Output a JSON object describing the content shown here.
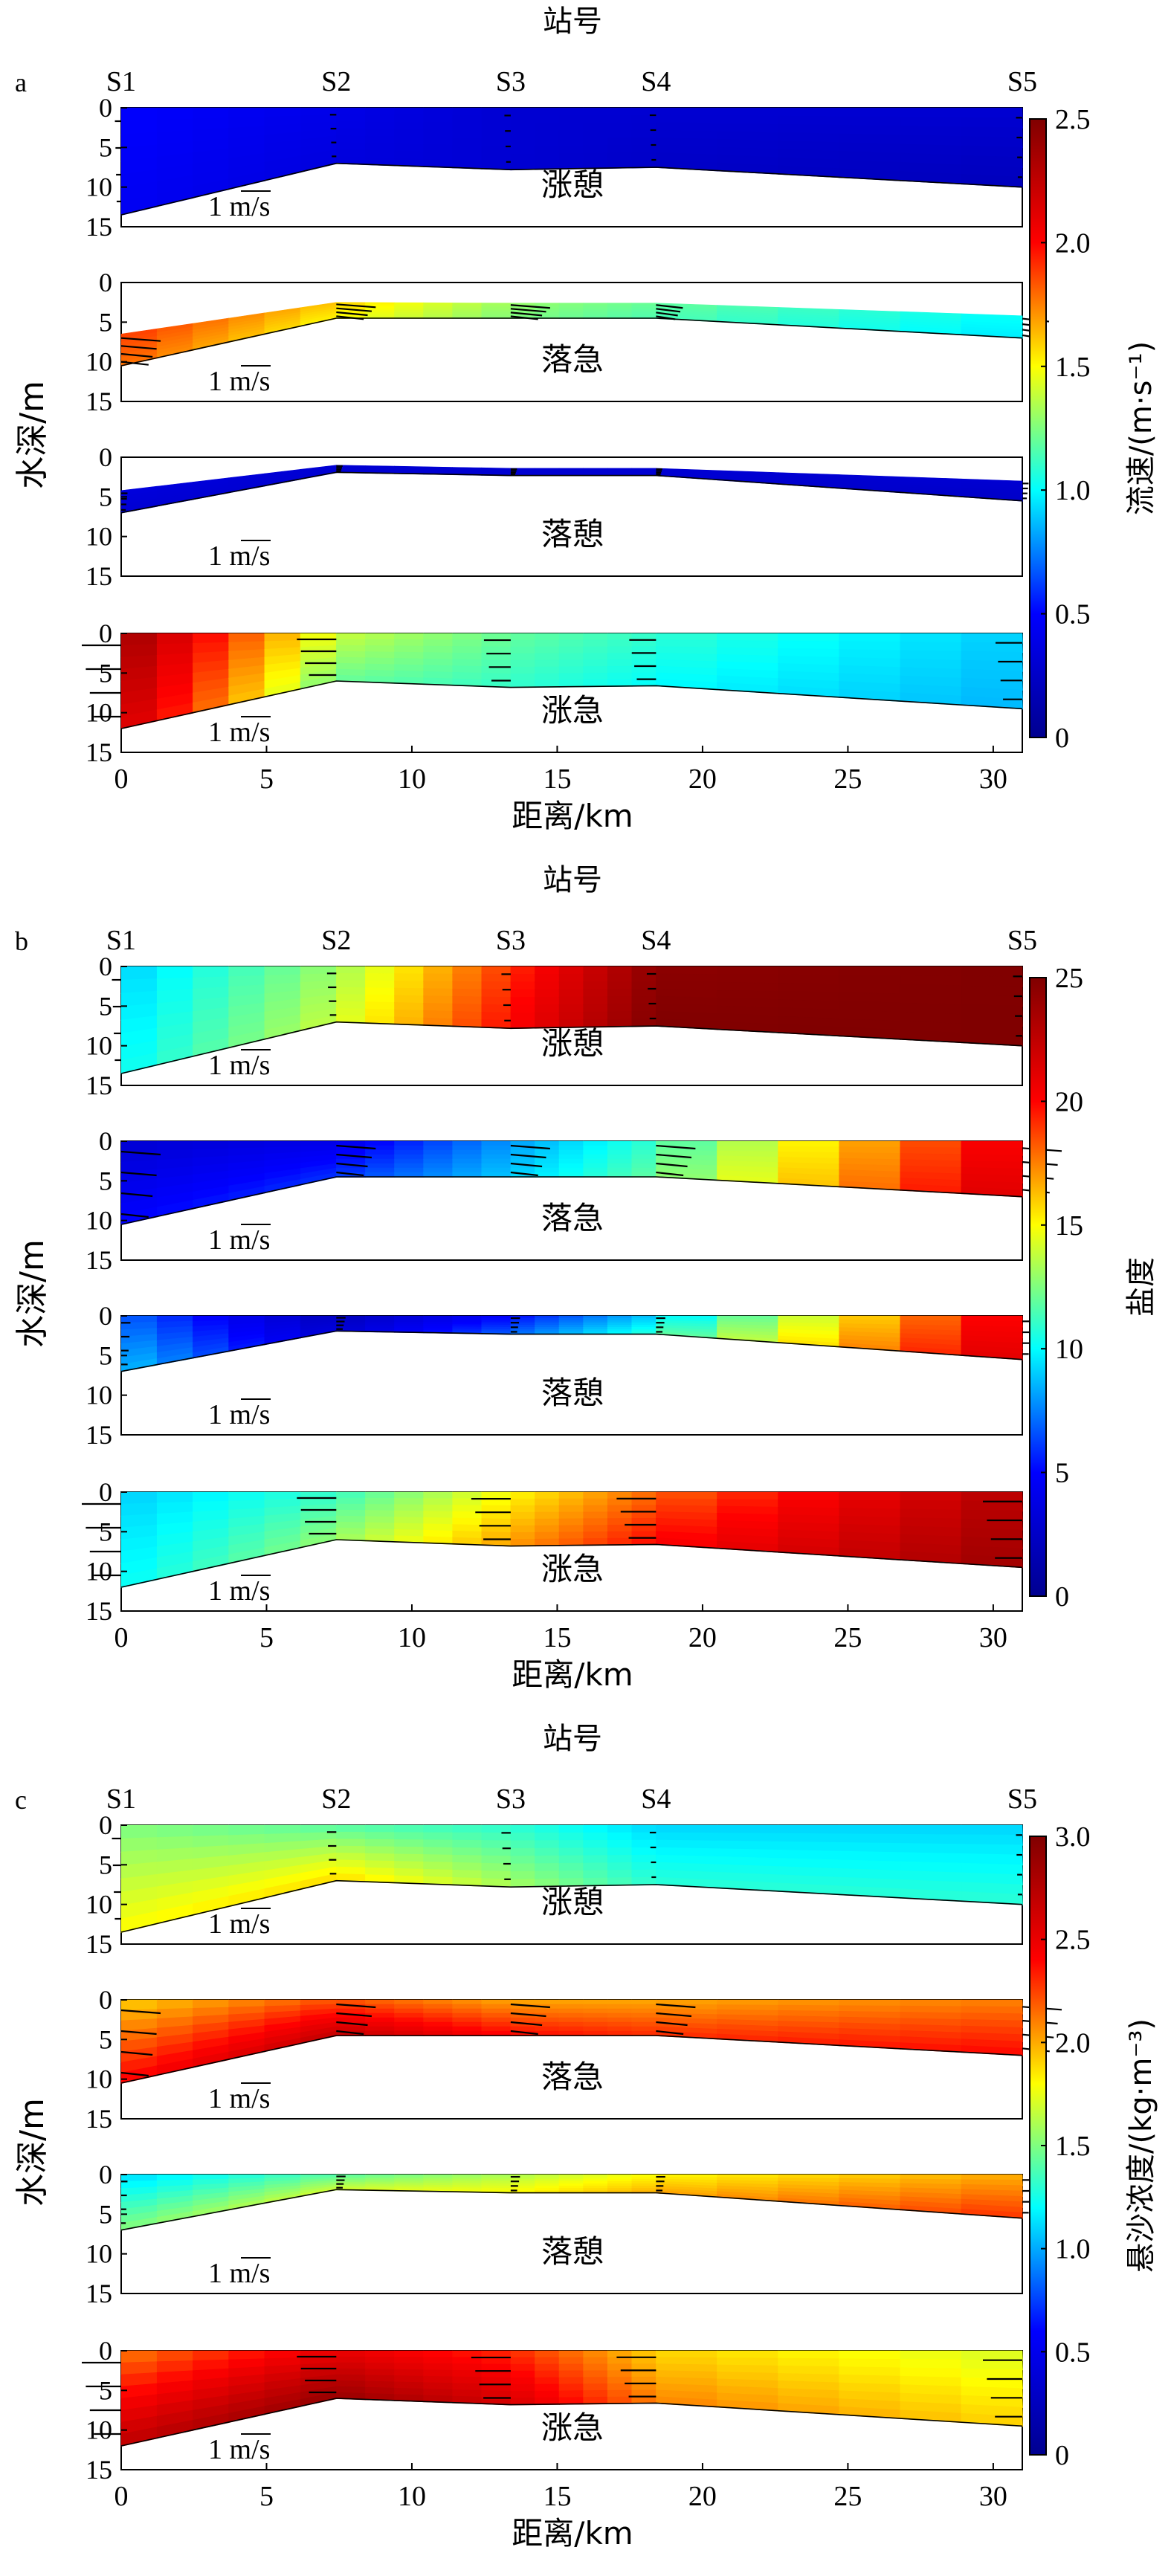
{
  "chart_data": [
    {
      "panel_letter": "a",
      "type": "heatmap",
      "title": "站号",
      "xlabel": "距离/km",
      "ylabel": "水深/m",
      "colorbar_label": "流速/(m·s⁻¹)",
      "colorbar_ticks": [
        "0",
        "0.5",
        "1.0",
        "1.5",
        "2.0",
        "2.5"
      ],
      "clim": [
        0,
        2.5
      ],
      "colormap": [
        "#00008f",
        "#0000ff",
        "#00ffff",
        "#ffff00",
        "#ff0000",
        "#800000"
      ],
      "xlim": [
        0,
        31
      ],
      "x_ticks": [
        "0",
        "5",
        "10",
        "15",
        "20",
        "25",
        "30"
      ],
      "ylim": [
        15,
        0
      ],
      "y_ticks": [
        "0",
        "5",
        "10",
        "15"
      ],
      "stations": [
        {
          "name": "S1",
          "x_km": 0
        },
        {
          "name": "S2",
          "x_km": 7.4
        },
        {
          "name": "S3",
          "x_km": 13.4
        },
        {
          "name": "S4",
          "x_km": 18.4
        },
        {
          "name": "S5",
          "x_km": 31
        }
      ],
      "scale_label": "1 m/s",
      "subplots": [
        {
          "phase": "涨憩",
          "bottom_depth": [
            13.5,
            7,
            7.8,
            7.5,
            10
          ],
          "surface_depth": [
            0,
            0,
            0,
            0,
            0
          ],
          "station_values": [
            [
              0.5,
              0.45
            ],
            [
              0.4,
              0.35
            ],
            [
              0.3,
              0.3
            ],
            [
              0.3,
              0.25
            ],
            [
              0.3,
              0.2
            ]
          ]
        },
        {
          "phase": "落急",
          "bottom_depth": [
            10.5,
            4.5,
            4.5,
            4.5,
            7
          ],
          "surface_depth": [
            6.5,
            2.5,
            2.6,
            2.6,
            4.2
          ],
          "station_values": [
            [
              1.9,
              1.8
            ],
            [
              1.6,
              1.5
            ],
            [
              1.3,
              1.25
            ],
            [
              1.2,
              1.15
            ],
            [
              1.0,
              0.95
            ]
          ]
        },
        {
          "phase": "落憩",
          "bottom_depth": [
            7,
            1.9,
            2.3,
            2.3,
            5.5
          ],
          "surface_depth": [
            4.2,
            1,
            1.4,
            1.4,
            3
          ],
          "station_values": [
            [
              0.35,
              0.3
            ],
            [
              0.3,
              0.3
            ],
            [
              0.3,
              0.3
            ],
            [
              0.3,
              0.3
            ],
            [
              0.3,
              0.25
            ]
          ]
        },
        {
          "phase": "涨急",
          "bottom_depth": [
            12,
            6,
            6.8,
            6.6,
            9.5
          ],
          "surface_depth": [
            0,
            0,
            0,
            0,
            0
          ],
          "station_values": [
            [
              2.4,
              2.2
            ],
            [
              1.4,
              1.2
            ],
            [
              1.2,
              1.1
            ],
            [
              1.1,
              1.0
            ],
            [
              0.9,
              0.85
            ]
          ]
        }
      ]
    },
    {
      "panel_letter": "b",
      "type": "heatmap",
      "title": "站号",
      "xlabel": "距离/km",
      "ylabel": "水深/m",
      "colorbar_label": "盐度",
      "colorbar_ticks": [
        "0",
        "5",
        "10",
        "15",
        "20",
        "25"
      ],
      "clim": [
        0,
        25
      ],
      "colormap": [
        "#00008f",
        "#0000ff",
        "#00ffff",
        "#ffff00",
        "#ff0000",
        "#800000"
      ],
      "xlim": [
        0,
        31
      ],
      "x_ticks": [
        "0",
        "5",
        "10",
        "15",
        "20",
        "25",
        "30"
      ],
      "ylim": [
        15,
        0
      ],
      "y_ticks": [
        "0",
        "5",
        "10",
        "15"
      ],
      "stations": [
        {
          "name": "S1",
          "x_km": 0
        },
        {
          "name": "S2",
          "x_km": 7.4
        },
        {
          "name": "S3",
          "x_km": 13.4
        },
        {
          "name": "S4",
          "x_km": 18.4
        },
        {
          "name": "S5",
          "x_km": 31
        }
      ],
      "scale_label": "1 m/s",
      "subplots": [
        {
          "phase": "涨憩",
          "bottom_depth": [
            13.5,
            7,
            7.8,
            7.5,
            10
          ],
          "surface_depth": [
            0,
            0,
            0,
            0,
            0
          ],
          "station_values": [
            [
              9,
              10
            ],
            [
              13,
              14
            ],
            [
              19,
              20
            ],
            [
              24.5,
              25
            ],
            [
              25,
              25
            ]
          ]
        },
        {
          "phase": "落急",
          "bottom_depth": [
            10.5,
            4.5,
            4.5,
            4.5,
            7
          ],
          "surface_depth": [
            0,
            0,
            0,
            0,
            0
          ],
          "station_values": [
            [
              3,
              5
            ],
            [
              4,
              6
            ],
            [
              8,
              9
            ],
            [
              11,
              12
            ],
            [
              21,
              22
            ]
          ]
        },
        {
          "phase": "落憩",
          "bottom_depth": [
            7,
            1.9,
            2.3,
            2.3,
            5.5
          ],
          "surface_depth": [
            0,
            0,
            0,
            0,
            0
          ],
          "station_values": [
            [
              7,
              9
            ],
            [
              2,
              3
            ],
            [
              5,
              7
            ],
            [
              9,
              11
            ],
            [
              21,
              22
            ]
          ]
        },
        {
          "phase": "涨急",
          "bottom_depth": [
            12,
            6,
            6.8,
            6.6,
            9.5
          ],
          "surface_depth": [
            0,
            0,
            0,
            0,
            0
          ],
          "station_values": [
            [
              9,
              10
            ],
            [
              11,
              13
            ],
            [
              15,
              17
            ],
            [
              18,
              20
            ],
            [
              23,
              24
            ]
          ]
        }
      ]
    },
    {
      "panel_letter": "c",
      "type": "heatmap",
      "title": "站号",
      "xlabel": "距离/km",
      "ylabel": "水深/m",
      "colorbar_label": "悬沙浓度/(kg·m⁻³)",
      "colorbar_ticks": [
        "0",
        "0.5",
        "1.0",
        "1.5",
        "2.0",
        "2.5",
        "3.0"
      ],
      "clim": [
        0,
        3
      ],
      "colormap": [
        "#00008f",
        "#0000ff",
        "#00ffff",
        "#ffff00",
        "#ff0000",
        "#800000"
      ],
      "xlim": [
        0,
        31
      ],
      "x_ticks": [
        "0",
        "5",
        "10",
        "15",
        "20",
        "25",
        "30"
      ],
      "ylim": [
        15,
        0
      ],
      "y_ticks": [
        "0",
        "5",
        "10",
        "15"
      ],
      "stations": [
        {
          "name": "S1",
          "x_km": 0
        },
        {
          "name": "S2",
          "x_km": 7.4
        },
        {
          "name": "S3",
          "x_km": 13.4
        },
        {
          "name": "S4",
          "x_km": 18.4
        },
        {
          "name": "S5",
          "x_km": 31
        }
      ],
      "scale_label": "1 m/s",
      "subplots": [
        {
          "phase": "涨憩",
          "bottom_depth": [
            13.5,
            7,
            7.8,
            7.5,
            10
          ],
          "surface_depth": [
            0,
            0,
            0,
            0,
            0
          ],
          "station_values": [
            [
              1.5,
              1.8
            ],
            [
              1.4,
              1.9
            ],
            [
              1.3,
              1.6
            ],
            [
              1.1,
              1.3
            ],
            [
              1.1,
              1.3
            ]
          ]
        },
        {
          "phase": "落急",
          "bottom_depth": [
            10.5,
            4.5,
            4.5,
            4.5,
            7
          ],
          "surface_depth": [
            0,
            0,
            0,
            0,
            0
          ],
          "station_values": [
            [
              1.9,
              2.4
            ],
            [
              2.2,
              2.7
            ],
            [
              2.0,
              2.4
            ],
            [
              2.0,
              2.3
            ],
            [
              2.1,
              2.4
            ]
          ]
        },
        {
          "phase": "落憩",
          "bottom_depth": [
            7,
            1.9,
            2.3,
            2.3,
            5.5
          ],
          "surface_depth": [
            0,
            0,
            0,
            0,
            0
          ],
          "station_values": [
            [
              1.1,
              1.5
            ],
            [
              1.4,
              1.7
            ],
            [
              1.6,
              1.8
            ],
            [
              1.8,
              2.0
            ],
            [
              2.0,
              2.3
            ]
          ]
        },
        {
          "phase": "涨急",
          "bottom_depth": [
            12,
            6,
            6.8,
            6.6,
            9.5
          ],
          "surface_depth": [
            0,
            0,
            0,
            0,
            0
          ],
          "station_values": [
            [
              2.1,
              2.7
            ],
            [
              2.5,
              2.9
            ],
            [
              2.3,
              2.6
            ],
            [
              1.9,
              2.1
            ],
            [
              1.7,
              1.9
            ]
          ]
        }
      ]
    }
  ]
}
